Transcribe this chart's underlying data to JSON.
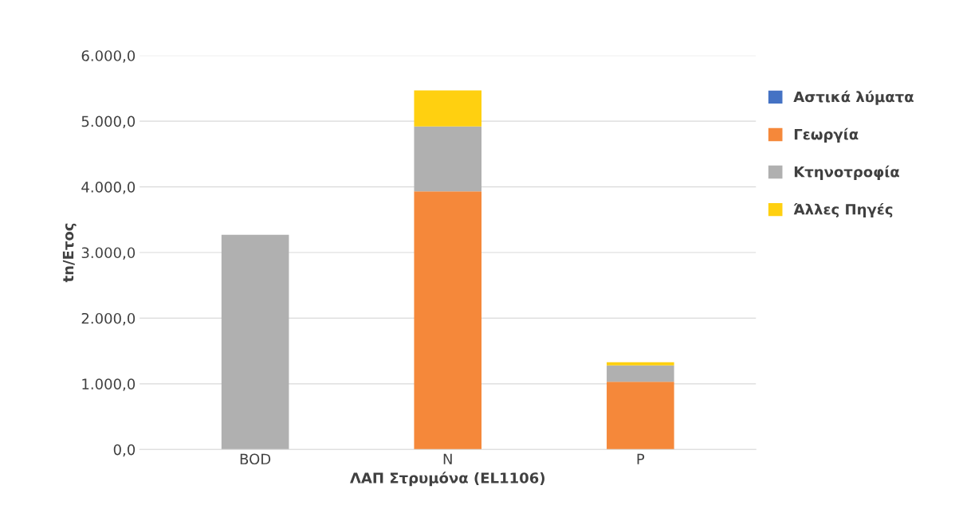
{
  "chart_data": {
    "type": "bar",
    "stacked": true,
    "xlabel": "ΛΑΠ Στρυμόνα (EL1106)",
    "ylabel": "tn/Ετος",
    "categories": [
      "BOD",
      "N",
      "P"
    ],
    "series": [
      {
        "name": "Αστικά λύματα",
        "color": "#4472c4",
        "values": [
          0,
          0,
          0
        ]
      },
      {
        "name": "Γεωργία",
        "color": "#f5883a",
        "values": [
          0,
          3930,
          1030
        ]
      },
      {
        "name": "Κτηνοτροφία",
        "color": "#b0b0b0",
        "values": [
          3270,
          990,
          250
        ]
      },
      {
        "name": "Άλλες Πηγές",
        "color": "#ffd010",
        "values": [
          0,
          550,
          50
        ]
      }
    ],
    "ylim": [
      0,
      6000
    ],
    "yticks": [
      {
        "value": 0,
        "label": "0,0"
      },
      {
        "value": 1000,
        "label": "1.000,0"
      },
      {
        "value": 2000,
        "label": "2.000,0"
      },
      {
        "value": 3000,
        "label": "3.000,0"
      },
      {
        "value": 4000,
        "label": "4.000,0"
      },
      {
        "value": 5000,
        "label": "5.000,0"
      },
      {
        "value": 6000,
        "label": "6.000,0"
      }
    ],
    "grid": "y",
    "legend": "right"
  }
}
